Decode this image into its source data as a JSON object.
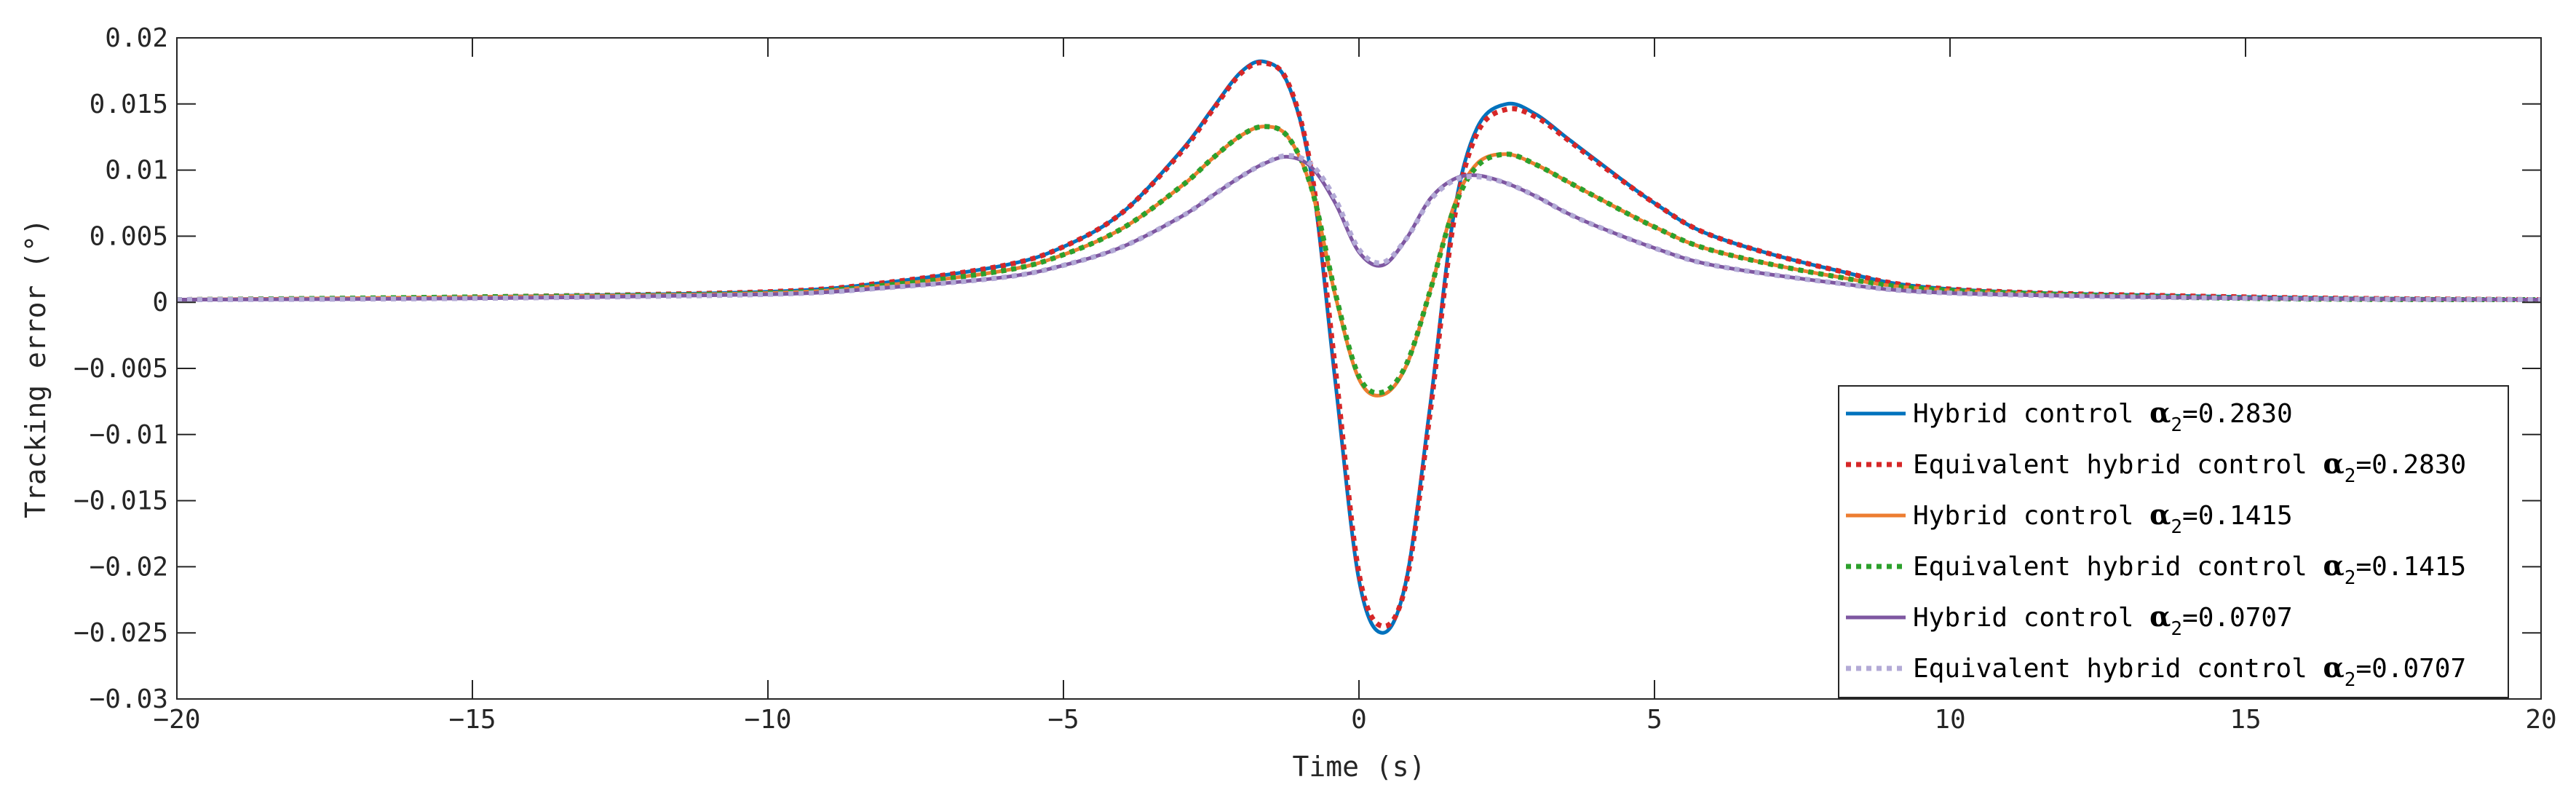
{
  "chart_data": {
    "type": "line",
    "xlabel": "Time (s)",
    "ylabel": "Tracking error (°)",
    "xlim": [
      -20,
      20
    ],
    "ylim": [
      -0.03,
      0.02
    ],
    "x_ticks": [
      -20,
      -15,
      -10,
      -5,
      0,
      5,
      10,
      15,
      20
    ],
    "x_tick_labels": [
      "-20",
      "-15",
      "-10",
      "-5",
      "0",
      "5",
      "10",
      "15",
      "20"
    ],
    "y_ticks": [
      0.02,
      0.015,
      0.01,
      0.005,
      0,
      -0.005,
      -0.01,
      -0.015,
      -0.02,
      -0.025,
      -0.03
    ],
    "y_tick_labels": [
      "0.02",
      "0.015",
      "0.01",
      "0.005",
      "0",
      "-0.005",
      "-0.01",
      "-0.015",
      "-0.02",
      "-0.025",
      "-0.03"
    ],
    "grid": false,
    "legend_position": "bottom-right",
    "series": [
      {
        "name": "Hybrid control α2=0.2830",
        "label_text": "Hybrid control ",
        "symbol": "α",
        "subscript": "2",
        "value_text": "=0.2830",
        "color": "#0072BD",
        "style": "solid",
        "x": [
          -20,
          -15,
          -10,
          -8,
          -6,
          -5,
          -4,
          -3,
          -2.5,
          -2,
          -1.6,
          -1.2,
          -0.8,
          -0.4,
          0,
          0.4,
          0.8,
          1.2,
          1.6,
          2,
          2.5,
          3,
          3.5,
          4,
          5,
          6,
          8,
          10,
          15,
          20
        ],
        "y": [
          0.0002,
          0.0004,
          0.0008,
          0.0015,
          0.0028,
          0.0042,
          0.0068,
          0.0115,
          0.0145,
          0.0174,
          0.0182,
          0.0165,
          0.0095,
          -0.006,
          -0.021,
          -0.025,
          -0.021,
          -0.008,
          0.0065,
          0.0132,
          0.015,
          0.0142,
          0.0125,
          0.0108,
          0.0075,
          0.005,
          0.0025,
          0.001,
          0.0004,
          0.0002
        ]
      },
      {
        "name": "Equivalent hybrid control α2=0.2830",
        "label_text": "Equivalent hybrid control ",
        "symbol": "α",
        "subscript": "2",
        "value_text": "=0.2830",
        "color": "#D62728",
        "style": "dotted",
        "x": [
          -20,
          -15,
          -10,
          -8,
          -6,
          -5,
          -4,
          -3,
          -2.5,
          -2,
          -1.6,
          -1.2,
          -0.8,
          -0.4,
          0,
          0.4,
          0.8,
          1.2,
          1.6,
          2,
          2.5,
          3,
          3.5,
          4,
          5,
          6,
          8,
          10,
          15,
          20
        ],
        "y": [
          0.0002,
          0.0004,
          0.0008,
          0.0015,
          0.0028,
          0.0042,
          0.0068,
          0.0114,
          0.0144,
          0.0173,
          0.0181,
          0.0166,
          0.0098,
          -0.005,
          -0.0205,
          -0.0245,
          -0.0212,
          -0.0085,
          0.006,
          0.0128,
          0.0146,
          0.014,
          0.0124,
          0.0107,
          0.0075,
          0.005,
          0.0025,
          0.001,
          0.0004,
          0.0002
        ]
      },
      {
        "name": "Hybrid control α2=0.1415",
        "label_text": "Hybrid control ",
        "symbol": "α",
        "subscript": "2",
        "value_text": "=0.1415",
        "color": "#ED7D31",
        "style": "solid",
        "x": [
          -20,
          -15,
          -10,
          -8,
          -6,
          -5,
          -4,
          -3,
          -2.5,
          -2,
          -1.6,
          -1.2,
          -0.8,
          -0.4,
          0,
          0.4,
          0.8,
          1.2,
          1.6,
          2,
          2.5,
          3,
          3.5,
          4,
          5,
          6,
          8,
          10,
          15,
          20
        ],
        "y": [
          0.0002,
          0.0004,
          0.0007,
          0.0013,
          0.0024,
          0.0036,
          0.0056,
          0.0088,
          0.0108,
          0.0126,
          0.0133,
          0.0125,
          0.0085,
          0.0005,
          -0.0058,
          -0.007,
          -0.0048,
          0.0008,
          0.0072,
          0.0105,
          0.0112,
          0.0104,
          0.0092,
          0.008,
          0.0057,
          0.0039,
          0.002,
          0.0009,
          0.0003,
          0.0002
        ]
      },
      {
        "name": "Equivalent hybrid control α2=0.1415",
        "label_text": "Equivalent hybrid control ",
        "symbol": "α",
        "subscript": "2",
        "value_text": "=0.1415",
        "color": "#2CA02C",
        "style": "dotted",
        "x": [
          -20,
          -15,
          -10,
          -8,
          -6,
          -5,
          -4,
          -3,
          -2.5,
          -2,
          -1.6,
          -1.2,
          -0.8,
          -0.4,
          0,
          0.4,
          0.8,
          1.2,
          1.6,
          2,
          2.5,
          3,
          3.5,
          4,
          5,
          6,
          8,
          10,
          15,
          20
        ],
        "y": [
          0.0002,
          0.0004,
          0.0007,
          0.0013,
          0.0024,
          0.0036,
          0.0056,
          0.0088,
          0.0108,
          0.0126,
          0.0133,
          0.0125,
          0.0086,
          0.0007,
          -0.0056,
          -0.0068,
          -0.0047,
          0.0008,
          0.007,
          0.0103,
          0.0112,
          0.0104,
          0.0092,
          0.008,
          0.0057,
          0.0039,
          0.002,
          0.0009,
          0.0003,
          0.0002
        ]
      },
      {
        "name": "Hybrid control α2=0.0707",
        "label_text": "Hybrid control ",
        "symbol": "α",
        "subscript": "2",
        "value_text": "=0.0707",
        "color": "#7E57A1",
        "style": "solid",
        "x": [
          -20,
          -15,
          -10,
          -8,
          -6,
          -5,
          -4,
          -3,
          -2.5,
          -2,
          -1.6,
          -1.2,
          -0.8,
          -0.4,
          0,
          0.4,
          0.8,
          1.2,
          1.6,
          2,
          2.5,
          3,
          3.5,
          4,
          5,
          6,
          8,
          10,
          15,
          20
        ],
        "y": [
          0.0002,
          0.0003,
          0.0006,
          0.0011,
          0.0019,
          0.0028,
          0.0042,
          0.0065,
          0.008,
          0.0095,
          0.0105,
          0.011,
          0.0102,
          0.0075,
          0.0038,
          0.0028,
          0.0048,
          0.0078,
          0.0093,
          0.0096,
          0.009,
          0.008,
          0.0068,
          0.0058,
          0.0041,
          0.0028,
          0.0015,
          0.0007,
          0.0003,
          0.0002
        ]
      },
      {
        "name": "Equivalent hybrid control α2=0.0707",
        "label_text": "Equivalent hybrid control ",
        "symbol": "α",
        "subscript": "2",
        "value_text": "=0.0707",
        "color": "#B3AAD6",
        "style": "dotted",
        "x": [
          -20,
          -15,
          -10,
          -8,
          -6,
          -5,
          -4,
          -3,
          -2.5,
          -2,
          -1.6,
          -1.2,
          -0.8,
          -0.4,
          0,
          0.4,
          0.8,
          1.2,
          1.6,
          2,
          2.5,
          3,
          3.5,
          4,
          5,
          6,
          8,
          10,
          15,
          20
        ],
        "y": [
          0.0002,
          0.0003,
          0.0006,
          0.0011,
          0.0019,
          0.0028,
          0.0042,
          0.0065,
          0.008,
          0.0095,
          0.0105,
          0.0111,
          0.0104,
          0.0078,
          0.004,
          0.003,
          0.0048,
          0.0077,
          0.0092,
          0.0095,
          0.009,
          0.008,
          0.0068,
          0.0058,
          0.0041,
          0.0028,
          0.0015,
          0.0007,
          0.0003,
          0.0002
        ]
      }
    ]
  }
}
